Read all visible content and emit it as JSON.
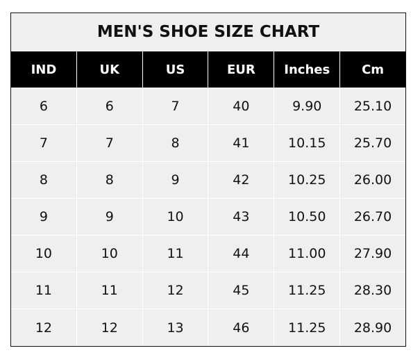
{
  "chart_data": {
    "type": "table",
    "title": "MEN'S SHOE SIZE CHART",
    "columns": [
      "IND",
      "UK",
      "US",
      "EUR",
      "Inches",
      "Cm"
    ],
    "rows": [
      [
        "6",
        "6",
        "7",
        "40",
        "9.90",
        "25.10"
      ],
      [
        "7",
        "7",
        "8",
        "41",
        "10.15",
        "25.70"
      ],
      [
        "8",
        "8",
        "9",
        "42",
        "10.25",
        "26.00"
      ],
      [
        "9",
        "9",
        "10",
        "43",
        "10.50",
        "26.70"
      ],
      [
        "10",
        "10",
        "11",
        "44",
        "11.00",
        "27.90"
      ],
      [
        "11",
        "11",
        "12",
        "45",
        "11.25",
        "28.30"
      ],
      [
        "12",
        "12",
        "13",
        "46",
        "11.25",
        "28.90"
      ]
    ]
  }
}
